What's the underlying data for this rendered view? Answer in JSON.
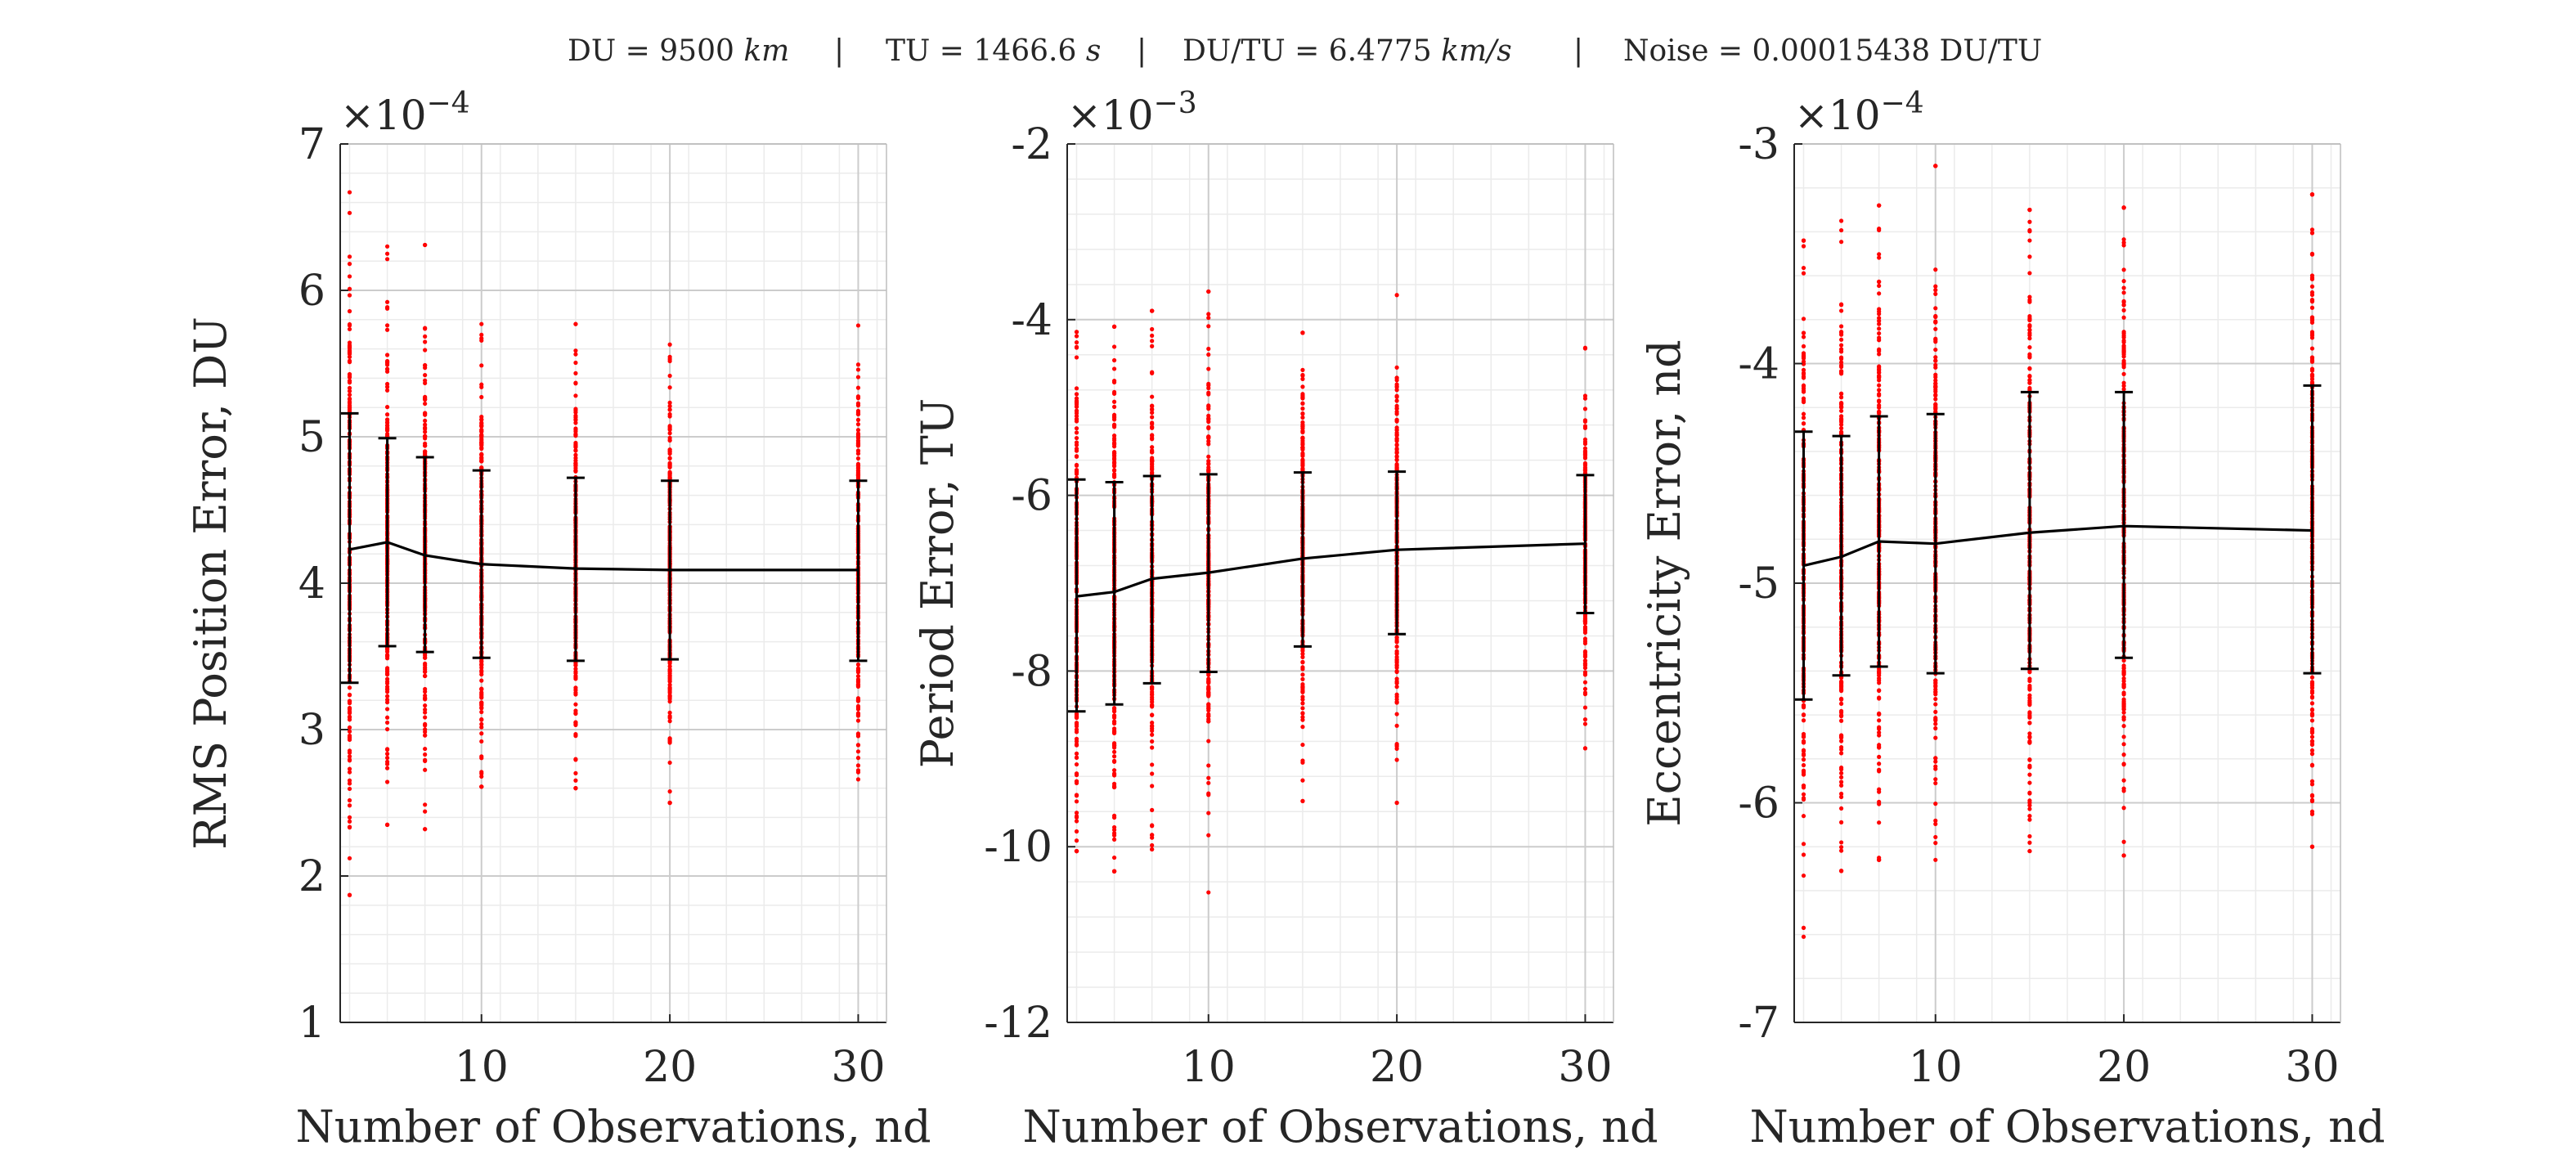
{
  "header": {
    "du_label": "DU = 9500",
    "du_unit": "km",
    "tu_label": "TU = 1466.6",
    "tu_unit": "s",
    "dutu_label": "DU/TU = 6.4775",
    "dutu_unit": "km/s",
    "noise_label": "Noise = 0.00015438 DU/TU",
    "separator": "|"
  },
  "colors": {
    "scatter": "#ff0000",
    "line": "#000000",
    "errorbar": "#000000",
    "axes": "#262626",
    "grid_major": "#cccccc",
    "grid_minor": "#ebebeb"
  },
  "chart_data": [
    {
      "type": "scatter",
      "xlabel": "Number of Observations, nd",
      "ylabel": "RMS Position Error, DU",
      "exponent": "-4",
      "xlim": [
        2.5,
        31.5
      ],
      "ylim": [
        1,
        7
      ],
      "xticks": [
        10,
        20,
        30
      ],
      "yticks": [
        1,
        2,
        3,
        4,
        5,
        6,
        7
      ],
      "grid": true,
      "x": [
        3,
        5,
        7,
        10,
        15,
        20,
        30
      ],
      "mean": [
        4.23,
        4.28,
        4.19,
        4.13,
        4.1,
        4.09,
        4.09
      ],
      "upper": [
        5.16,
        4.99,
        4.86,
        4.77,
        4.72,
        4.7,
        4.7
      ],
      "lower": [
        3.32,
        3.57,
        3.53,
        3.49,
        3.47,
        3.48,
        3.47
      ],
      "scatter_min": [
        1.87,
        2.35,
        2.32,
        2.61,
        2.6,
        2.5,
        2.66
      ],
      "scatter_max": [
        6.67,
        6.3,
        6.31,
        5.77,
        5.77,
        5.63,
        5.76
      ]
    },
    {
      "type": "scatter",
      "xlabel": "Number of Observations, nd",
      "ylabel": "Period Error, TU",
      "exponent": "-3",
      "xlim": [
        2.5,
        31.5
      ],
      "ylim": [
        -12,
        -2
      ],
      "xticks": [
        10,
        20,
        30
      ],
      "yticks": [
        -12,
        -10,
        -8,
        -6,
        -4,
        -2
      ],
      "grid": true,
      "x": [
        3,
        5,
        7,
        10,
        15,
        20,
        30
      ],
      "mean": [
        -7.15,
        -7.1,
        -6.95,
        -6.88,
        -6.72,
        -6.62,
        -6.55
      ],
      "upper": [
        -5.82,
        -5.85,
        -5.78,
        -5.76,
        -5.74,
        -5.73,
        -5.77
      ],
      "lower": [
        -8.46,
        -8.38,
        -8.14,
        -8.01,
        -7.72,
        -7.58,
        -7.34
      ],
      "scatter_min": [
        -10.05,
        -10.28,
        -10.03,
        -10.52,
        -9.48,
        -9.5,
        -8.88
      ],
      "scatter_max": [
        -4.14,
        -4.08,
        -3.9,
        -3.68,
        -4.15,
        -3.72,
        -4.32
      ]
    },
    {
      "type": "scatter",
      "xlabel": "Number of Observations, nd",
      "ylabel": "Eccentricity Error, nd",
      "exponent": "-4",
      "xlim": [
        2.5,
        31.5
      ],
      "ylim": [
        -7,
        -3
      ],
      "xticks": [
        10,
        20,
        30
      ],
      "yticks": [
        -7,
        -6,
        -5,
        -4,
        -3
      ],
      "grid": true,
      "x": [
        3,
        5,
        7,
        10,
        15,
        20,
        30
      ],
      "mean": [
        -4.92,
        -4.88,
        -4.81,
        -4.82,
        -4.77,
        -4.74,
        -4.76
      ],
      "upper": [
        -4.31,
        -4.33,
        -4.24,
        -4.23,
        -4.13,
        -4.13,
        -4.1
      ],
      "lower": [
        -5.53,
        -5.42,
        -5.38,
        -5.41,
        -5.39,
        -5.34,
        -5.41
      ],
      "scatter_min": [
        -6.61,
        -6.31,
        -6.26,
        -6.26,
        -6.22,
        -6.24,
        -6.2
      ],
      "scatter_max": [
        -3.44,
        -3.35,
        -3.28,
        -3.1,
        -3.3,
        -3.29,
        -3.23
      ]
    }
  ]
}
